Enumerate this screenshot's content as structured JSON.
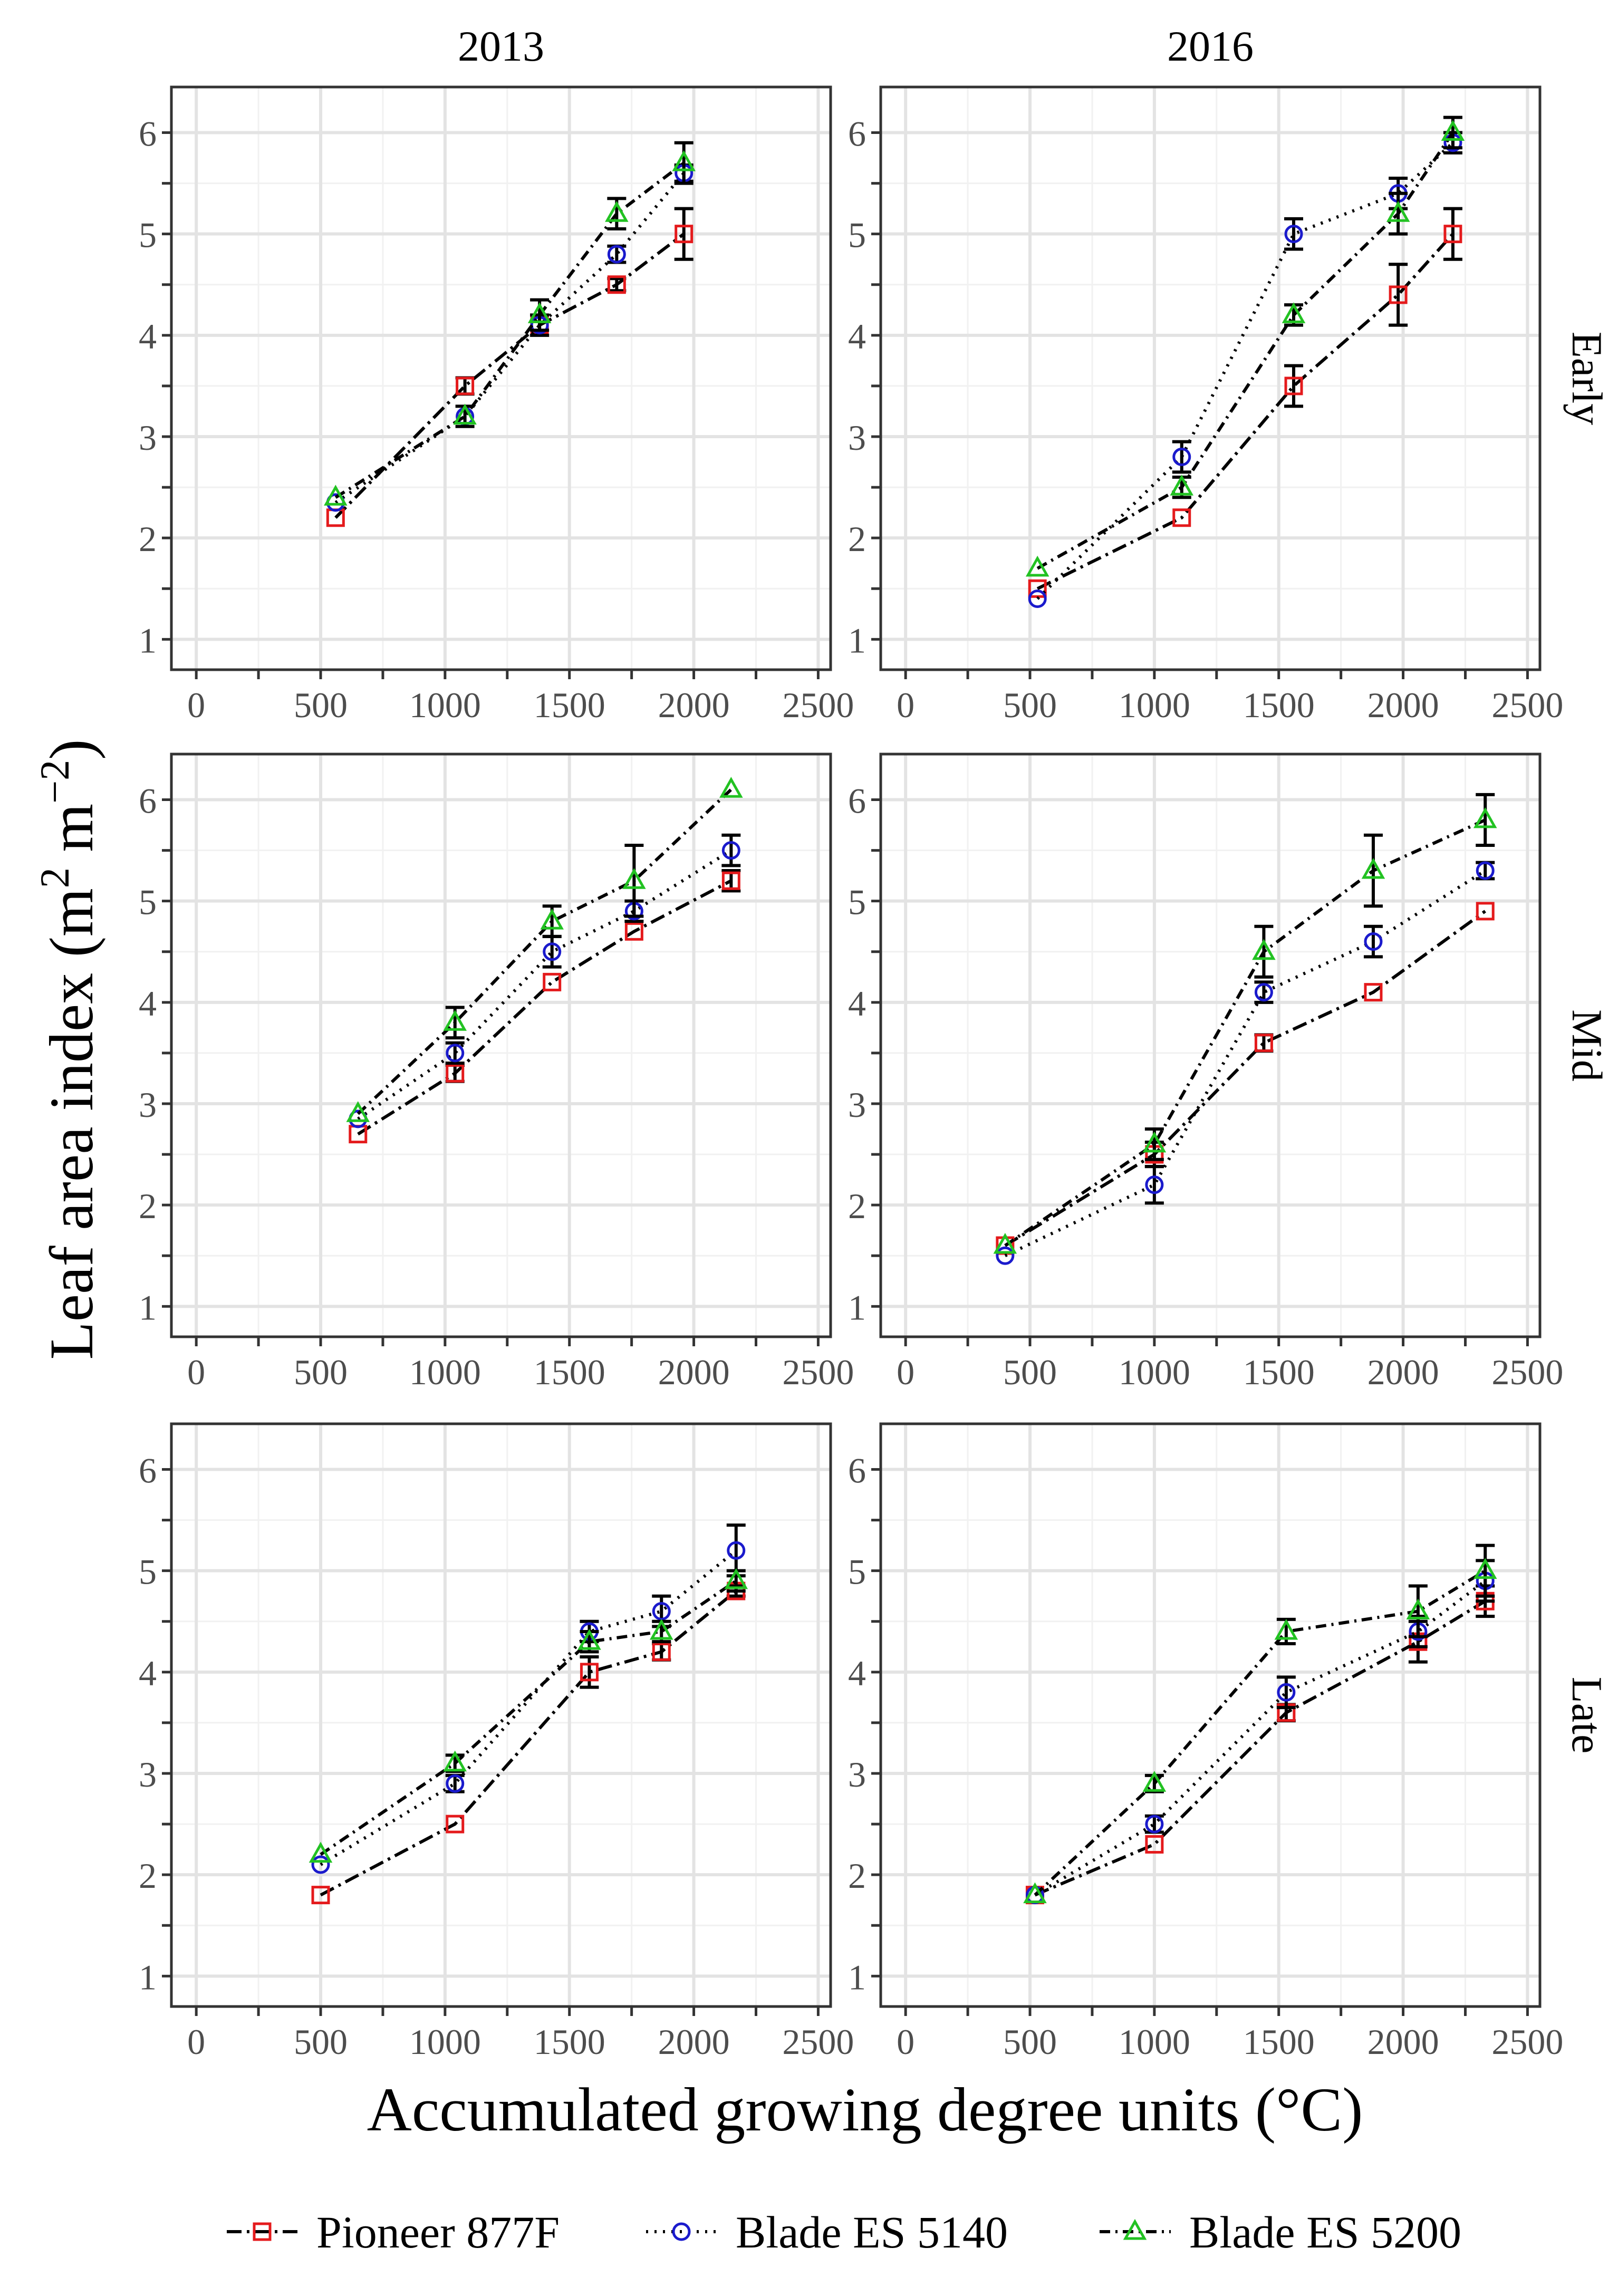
{
  "chart_data": {
    "type": "line",
    "xlabel": "Accumulated growing degree units (°C)",
    "ylabel_main": "Leaf area index (m",
    "ylabel_sup1": "2",
    "ylabel_mid": " m",
    "ylabel_sup2": "−2",
    "ylabel_end": ")",
    "xlim": [
      -100,
      2550
    ],
    "ylim": [
      0.7,
      6.45
    ],
    "x_ticks": [
      0,
      500,
      1000,
      1500,
      2000,
      2500
    ],
    "y_ticks": [
      1,
      2,
      3,
      4,
      5,
      6
    ],
    "columns": [
      "2013",
      "2016"
    ],
    "rows": [
      "Early",
      "Mid",
      "Late"
    ],
    "legend_position": "bottom",
    "series": [
      {
        "name": "Pioneer 877F",
        "color": "#e41a1c",
        "marker": "square",
        "dash": "28,10,5,10"
      },
      {
        "name": "Blade ES 5140",
        "color": "#1a1acc",
        "marker": "circle",
        "dash": "4,12"
      },
      {
        "name": "Blade ES 5200",
        "color": "#22c222",
        "marker": "triangle",
        "dash": "20,10,4,10"
      }
    ],
    "panels": [
      {
        "year": "2013",
        "planting": "Early",
        "lines": [
          {
            "series": "Pioneer 877F",
            "points": [
              [
                560,
                2.2,
                0
              ],
              [
                1080,
                3.5,
                0.08
              ],
              [
                1380,
                4.1,
                0
              ],
              [
                1690,
                4.5,
                0.06
              ],
              [
                1960,
                5.0,
                0.25
              ]
            ]
          },
          {
            "series": "Blade ES 5140",
            "points": [
              [
                560,
                2.35,
                0
              ],
              [
                1080,
                3.2,
                0
              ],
              [
                1380,
                4.1,
                0.1
              ],
              [
                1690,
                4.8,
                0.08
              ],
              [
                1960,
                5.6,
                0.08
              ]
            ]
          },
          {
            "series": "Blade ES 5200",
            "points": [
              [
                560,
                2.4,
                0
              ],
              [
                1080,
                3.2,
                0.1
              ],
              [
                1380,
                4.2,
                0.15
              ],
              [
                1690,
                5.2,
                0.15
              ],
              [
                1960,
                5.7,
                0.2
              ]
            ]
          }
        ]
      },
      {
        "year": "2016",
        "planting": "Early",
        "lines": [
          {
            "series": "Pioneer 877F",
            "points": [
              [
                530,
                1.5,
                0
              ],
              [
                1110,
                2.2,
                0
              ],
              [
                1560,
                3.5,
                0.2
              ],
              [
                1980,
                4.4,
                0.3
              ],
              [
                2200,
                5.0,
                0.25
              ]
            ]
          },
          {
            "series": "Blade ES 5140",
            "points": [
              [
                530,
                1.4,
                0
              ],
              [
                1110,
                2.8,
                0.15
              ],
              [
                1560,
                5.0,
                0.15
              ],
              [
                1980,
                5.4,
                0.15
              ],
              [
                2200,
                5.9,
                0.1
              ]
            ]
          },
          {
            "series": "Blade ES 5200",
            "points": [
              [
                530,
                1.7,
                0
              ],
              [
                1110,
                2.5,
                0.1
              ],
              [
                1560,
                4.2,
                0.1
              ],
              [
                1980,
                5.2,
                0.2
              ],
              [
                2200,
                6.0,
                0.15
              ]
            ]
          }
        ]
      },
      {
        "year": "2013",
        "planting": "Mid",
        "lines": [
          {
            "series": "Pioneer 877F",
            "points": [
              [
                650,
                2.7,
                0
              ],
              [
                1040,
                3.3,
                0.08
              ],
              [
                1430,
                4.2,
                0
              ],
              [
                1760,
                4.7,
                0
              ],
              [
                2150,
                5.2,
                0.1
              ]
            ]
          },
          {
            "series": "Blade ES 5140",
            "points": [
              [
                650,
                2.85,
                0
              ],
              [
                1040,
                3.5,
                0.1
              ],
              [
                1430,
                4.5,
                0.15
              ],
              [
                1760,
                4.9,
                0.1
              ],
              [
                2150,
                5.5,
                0.15
              ]
            ]
          },
          {
            "series": "Blade ES 5200",
            "points": [
              [
                650,
                2.9,
                0
              ],
              [
                1040,
                3.8,
                0.15
              ],
              [
                1430,
                4.8,
                0.15
              ],
              [
                1760,
                5.2,
                0.35
              ],
              [
                2150,
                6.1,
                0
              ]
            ]
          }
        ]
      },
      {
        "year": "2016",
        "planting": "Mid",
        "lines": [
          {
            "series": "Pioneer 877F",
            "points": [
              [
                400,
                1.6,
                0
              ],
              [
                1000,
                2.5,
                0.12
              ],
              [
                1440,
                3.6,
                0.08
              ],
              [
                1880,
                4.1,
                0
              ],
              [
                2330,
                4.9,
                0
              ]
            ]
          },
          {
            "series": "Blade ES 5140",
            "points": [
              [
                400,
                1.5,
                0
              ],
              [
                1000,
                2.2,
                0.18
              ],
              [
                1440,
                4.1,
                0.1
              ],
              [
                1880,
                4.6,
                0.15
              ],
              [
                2330,
                5.3,
                0.08
              ]
            ]
          },
          {
            "series": "Blade ES 5200",
            "points": [
              [
                400,
                1.6,
                0
              ],
              [
                1000,
                2.6,
                0.15
              ],
              [
                1440,
                4.5,
                0.25
              ],
              [
                1880,
                5.3,
                0.35
              ],
              [
                2330,
                5.8,
                0.25
              ]
            ]
          }
        ]
      },
      {
        "year": "2013",
        "planting": "Late",
        "lines": [
          {
            "series": "Pioneer 877F",
            "points": [
              [
                500,
                1.8,
                0
              ],
              [
                1040,
                2.5,
                0
              ],
              [
                1580,
                4.0,
                0.15
              ],
              [
                1870,
                4.2,
                0.08
              ],
              [
                2170,
                4.8,
                0.05
              ]
            ]
          },
          {
            "series": "Blade ES 5140",
            "points": [
              [
                500,
                2.1,
                0
              ],
              [
                1040,
                2.9,
                0.08
              ],
              [
                1580,
                4.4,
                0.1
              ],
              [
                1870,
                4.6,
                0.15
              ],
              [
                2170,
                5.2,
                0.25
              ]
            ]
          },
          {
            "series": "Blade ES 5200",
            "points": [
              [
                500,
                2.2,
                0
              ],
              [
                1040,
                3.1,
                0.08
              ],
              [
                1580,
                4.3,
                0.1
              ],
              [
                1870,
                4.4,
                0.1
              ],
              [
                2170,
                4.9,
                0.1
              ]
            ]
          }
        ]
      },
      {
        "year": "2016",
        "planting": "Late",
        "lines": [
          {
            "series": "Pioneer 877F",
            "points": [
              [
                520,
                1.8,
                0
              ],
              [
                1000,
                2.3,
                0
              ],
              [
                1530,
                3.6,
                0.08
              ],
              [
                2060,
                4.3,
                0.2
              ],
              [
                2330,
                4.7,
                0.15
              ]
            ]
          },
          {
            "series": "Blade ES 5140",
            "points": [
              [
                520,
                1.8,
                0
              ],
              [
                1000,
                2.5,
                0.08
              ],
              [
                1530,
                3.8,
                0.15
              ],
              [
                2060,
                4.4,
                0.15
              ],
              [
                2330,
                4.9,
                0.2
              ]
            ]
          },
          {
            "series": "Blade ES 5200",
            "points": [
              [
                520,
                1.8,
                0
              ],
              [
                1000,
                2.9,
                0.08
              ],
              [
                1530,
                4.4,
                0.12
              ],
              [
                2060,
                4.6,
                0.25
              ],
              [
                2330,
                5.0,
                0.25
              ]
            ]
          }
        ]
      }
    ]
  }
}
